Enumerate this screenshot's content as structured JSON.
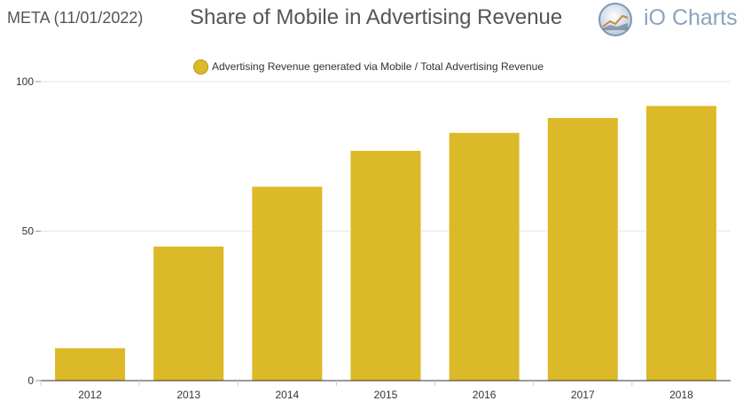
{
  "header": {
    "ticker": "META (11/01/2022)",
    "title": "Share of Mobile in Advertising Revenue",
    "brand": "iO Charts"
  },
  "chart_data": {
    "type": "bar",
    "categories": [
      "2012",
      "2013",
      "2014",
      "2015",
      "2016",
      "2017",
      "2018"
    ],
    "series": [
      {
        "name": "Advertising Revenue generated via Mobile / Total Advertising Revenue",
        "values": [
          11,
          45,
          65,
          77,
          83,
          88,
          92
        ],
        "color": "#dbb928"
      }
    ],
    "ylim": [
      0,
      100
    ],
    "yticks": [
      "0",
      "50",
      "100"
    ],
    "grid": true,
    "legend_position": "top-center"
  }
}
